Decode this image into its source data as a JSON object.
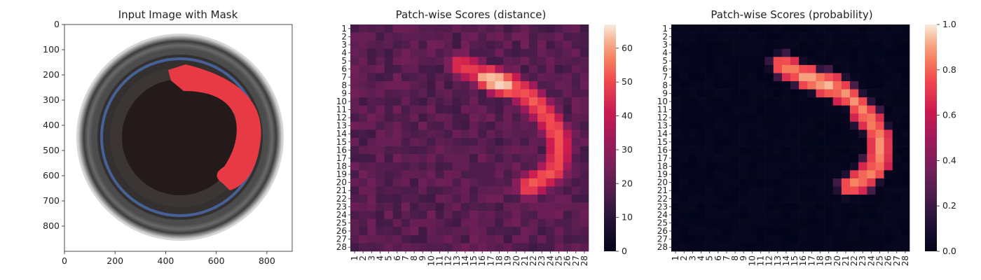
{
  "panel1": {
    "title": "Input Image with Mask",
    "x_ticks": [
      "0",
      "200",
      "400",
      "600",
      "800"
    ],
    "y_ticks": [
      "0",
      "100",
      "200",
      "300",
      "400",
      "500",
      "600",
      "700",
      "800"
    ],
    "mask_color": "#e83a44"
  },
  "chart_data": [
    {
      "type": "heatmap",
      "title": "Patch-wise Scores (distance)",
      "rows": [
        "1",
        "2",
        "3",
        "4",
        "5",
        "6",
        "7",
        "8",
        "9",
        "10",
        "11",
        "12",
        "13",
        "14",
        "15",
        "16",
        "17",
        "18",
        "19",
        "20",
        "21",
        "22",
        "23",
        "24",
        "25",
        "26",
        "27",
        "28"
      ],
      "cols": [
        "1",
        "2",
        "3",
        "4",
        "5",
        "6",
        "7",
        "8",
        "9",
        "10",
        "11",
        "12",
        "13",
        "14",
        "15",
        "16",
        "17",
        "18",
        "19",
        "20",
        "21",
        "22",
        "23",
        "24",
        "25",
        "26",
        "27",
        "28"
      ],
      "colorbar_range": [
        0,
        67
      ],
      "colorbar_ticks": [
        "0",
        "10",
        "20",
        "30",
        "40",
        "50",
        "60"
      ],
      "colormap": "rocket",
      "background_range": [
        14,
        25
      ],
      "hot_region_peak": 67,
      "hot_region_path": "arc from row 5 col 13 through peak at row 7-8 col 17-18, down column 23-26 to row 22 col 20"
    },
    {
      "type": "heatmap",
      "title": "Patch-wise Scores (probability)",
      "rows": [
        "1",
        "2",
        "3",
        "4",
        "5",
        "6",
        "7",
        "8",
        "9",
        "10",
        "11",
        "12",
        "13",
        "14",
        "15",
        "16",
        "17",
        "18",
        "19",
        "20",
        "21",
        "22",
        "23",
        "24",
        "25",
        "26",
        "27",
        "28"
      ],
      "cols": [
        "1",
        "2",
        "3",
        "4",
        "5",
        "6",
        "7",
        "8",
        "9",
        "10",
        "11",
        "12",
        "13",
        "14",
        "15",
        "16",
        "17",
        "18",
        "19",
        "20",
        "21",
        "22",
        "23",
        "24",
        "25",
        "26",
        "27",
        "28"
      ],
      "colorbar_range": [
        0.0,
        1.0
      ],
      "colorbar_ticks": [
        "0.0",
        "0.2",
        "0.4",
        "0.6",
        "0.8",
        "1.0"
      ],
      "colormap": "rocket",
      "background_value": 0.0,
      "hot_region_peak": 0.96,
      "hot_region_path": "same arc as distance map, saturated near 0.9"
    }
  ]
}
